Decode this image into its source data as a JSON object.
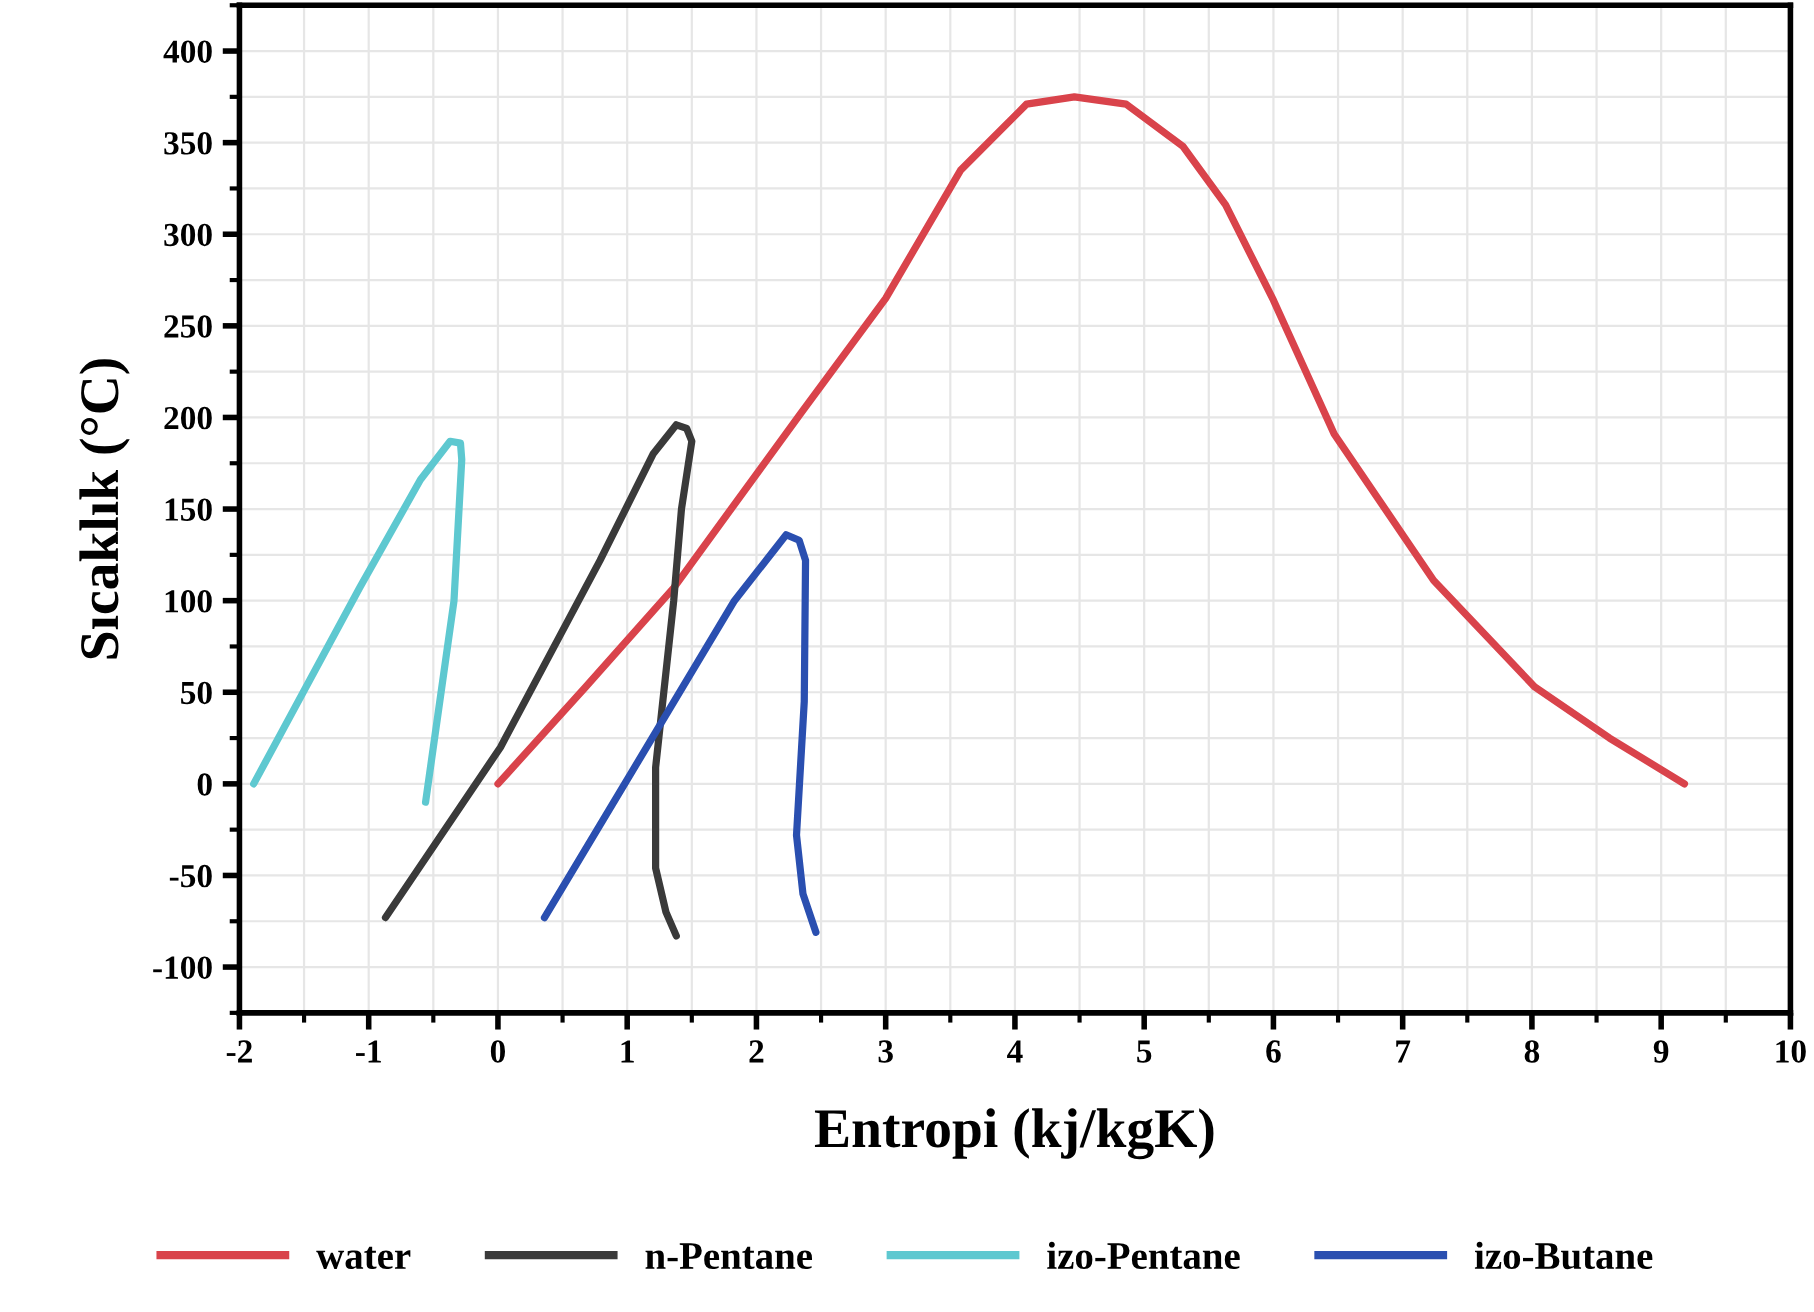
{
  "chart_data": {
    "type": "line",
    "xlabel": "Entropi (kj/kgK)",
    "ylabel": "Sıcaklık (°C)",
    "xlim": [
      -2,
      10
    ],
    "xticks": [
      -2,
      -1,
      0,
      1,
      2,
      3,
      4,
      5,
      6,
      7,
      8,
      9,
      10
    ],
    "ylim": [
      -125,
      425
    ],
    "yticks": [
      -100,
      -50,
      0,
      50,
      100,
      150,
      200,
      250,
      300,
      350,
      400
    ],
    "grid": true,
    "legend": "bottom",
    "marker": "none",
    "line_style": "solid",
    "series": [
      {
        "name": "water",
        "color": "#d9434b",
        "x": [
          0,
          0.68,
          1.36,
          2.34,
          3.0,
          3.58,
          4.09,
          4.46,
          4.86,
          5.3,
          5.63,
          6.0,
          6.47,
          7.24,
          8.02,
          8.6,
          9.18
        ],
        "values": [
          0,
          53,
          107,
          202,
          265,
          335,
          371,
          375,
          371,
          348,
          316,
          264,
          191,
          111,
          53,
          25,
          0
        ]
      },
      {
        "name": "n-Pentane",
        "color": "#3a3a3a",
        "x": [
          -0.87,
          0.02,
          0.79,
          1.2,
          1.38,
          1.46,
          1.5,
          1.42,
          1.36,
          1.22,
          1.22,
          1.3,
          1.38
        ],
        "values": [
          -73,
          20,
          122,
          180,
          196,
          194,
          187,
          150,
          100,
          9,
          -46,
          -70,
          -83
        ]
      },
      {
        "name": "izo-Pentane",
        "color": "#5ec8d0",
        "x": [
          -1.89,
          -1.07,
          -0.6,
          -0.37,
          -0.29,
          -0.28,
          -0.34,
          -0.56
        ],
        "values": [
          0,
          107,
          166,
          187,
          186,
          177,
          100,
          -10
        ]
      },
      {
        "name": "izo-Butane",
        "color": "#2a4fb0",
        "x": [
          0.36,
          1.21,
          1.83,
          2.23,
          2.33,
          2.38,
          2.37,
          2.31,
          2.36,
          2.46
        ],
        "values": [
          -73,
          27,
          100,
          136,
          133,
          122,
          45,
          -28,
          -60,
          -81
        ]
      }
    ]
  }
}
